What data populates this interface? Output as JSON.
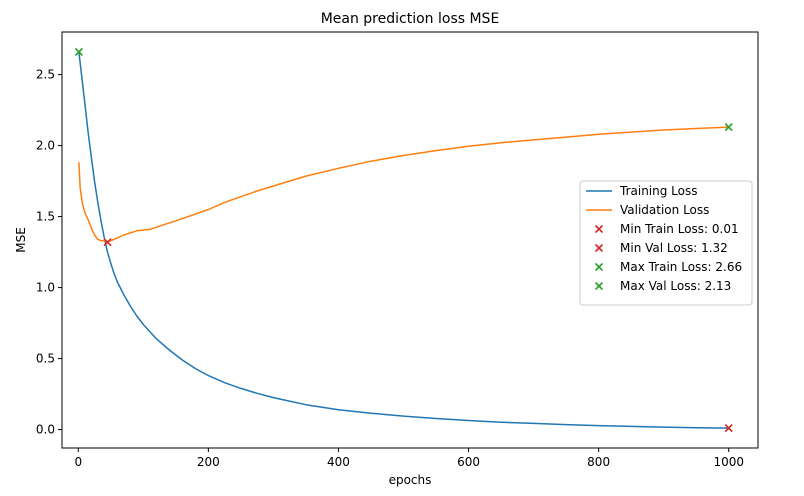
{
  "chart_data": {
    "type": "line",
    "title": "Mean prediction loss MSE",
    "xlabel": "epochs",
    "ylabel": "MSE",
    "xlim": [
      -25,
      1045
    ],
    "ylim": [
      -0.13,
      2.8
    ],
    "xticks": [
      0,
      200,
      400,
      600,
      800,
      1000
    ],
    "yticks": [
      0.0,
      0.5,
      1.0,
      1.5,
      2.0,
      2.5
    ],
    "xtick_labels": [
      "0",
      "200",
      "400",
      "600",
      "800",
      "1000"
    ],
    "ytick_labels": [
      "0.0",
      "0.5",
      "1.0",
      "1.5",
      "2.0",
      "2.5"
    ],
    "grid": false,
    "legend_position": "center-right",
    "series": [
      {
        "name": "Training Loss",
        "color": "#1f77b4",
        "x": [
          1,
          5,
          10,
          15,
          20,
          25,
          30,
          35,
          40,
          45,
          50,
          55,
          60,
          70,
          80,
          90,
          100,
          120,
          140,
          160,
          180,
          200,
          225,
          250,
          275,
          300,
          350,
          400,
          450,
          500,
          550,
          600,
          650,
          700,
          750,
          800,
          850,
          900,
          950,
          1000
        ],
        "y": [
          2.66,
          2.5,
          2.3,
          2.1,
          1.92,
          1.75,
          1.6,
          1.47,
          1.35,
          1.25,
          1.17,
          1.1,
          1.04,
          0.95,
          0.87,
          0.8,
          0.74,
          0.64,
          0.56,
          0.49,
          0.43,
          0.38,
          0.33,
          0.29,
          0.255,
          0.225,
          0.175,
          0.14,
          0.115,
          0.095,
          0.078,
          0.064,
          0.052,
          0.043,
          0.035,
          0.028,
          0.022,
          0.017,
          0.013,
          0.01
        ]
      },
      {
        "name": "Validation Loss",
        "color": "#ff7f0e",
        "x": [
          1,
          3,
          6,
          10,
          15,
          20,
          25,
          30,
          35,
          40,
          45,
          50,
          60,
          70,
          80,
          90,
          100,
          110,
          130,
          150,
          175,
          200,
          225,
          250,
          275,
          300,
          350,
          400,
          450,
          500,
          550,
          600,
          650,
          700,
          750,
          800,
          850,
          900,
          950,
          1000
        ],
        "y": [
          1.88,
          1.7,
          1.6,
          1.53,
          1.48,
          1.42,
          1.37,
          1.34,
          1.33,
          1.33,
          1.32,
          1.33,
          1.35,
          1.37,
          1.385,
          1.4,
          1.405,
          1.41,
          1.44,
          1.47,
          1.51,
          1.55,
          1.6,
          1.64,
          1.68,
          1.715,
          1.785,
          1.84,
          1.89,
          1.93,
          1.965,
          1.995,
          2.02,
          2.04,
          2.06,
          2.08,
          2.095,
          2.11,
          2.12,
          2.13
        ]
      }
    ],
    "markers": [
      {
        "label": "Min Train Loss: 0.01",
        "color": "#d62728",
        "x": 1000,
        "y": 0.01
      },
      {
        "label": "Min Val Loss: 1.32",
        "color": "#d62728",
        "x": 45,
        "y": 1.32
      },
      {
        "label": "Max Train Loss: 2.66",
        "color": "#2ca02c",
        "x": 1,
        "y": 2.66
      },
      {
        "label": "Max Val Loss: 2.13",
        "color": "#2ca02c",
        "x": 1000,
        "y": 2.13
      }
    ]
  }
}
